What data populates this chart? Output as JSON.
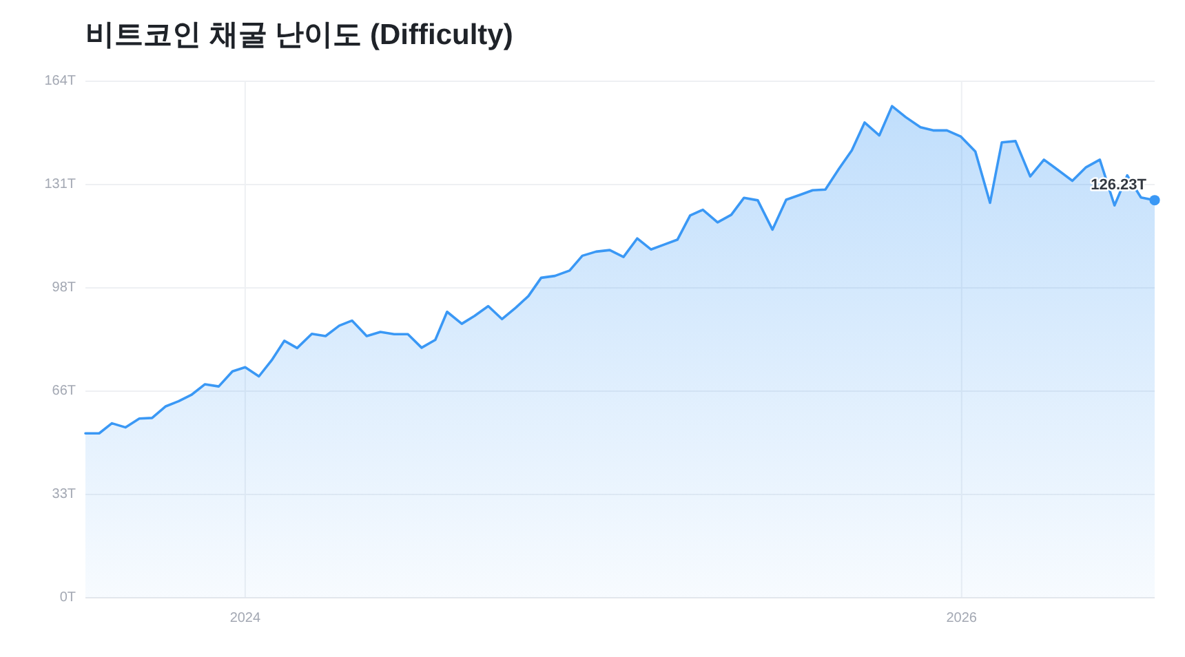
{
  "chart_data": {
    "type": "area",
    "title": "비트코인 채굴 난이도 (Difficulty)",
    "x": [
      "2023-07-22",
      "2023-08-05",
      "2023-08-18",
      "2023-09-01",
      "2023-09-15",
      "2023-09-28",
      "2023-10-12",
      "2023-10-25",
      "2023-11-07",
      "2023-11-21",
      "2023-12-05",
      "2023-12-19",
      "2024-01-01",
      "2024-01-15",
      "2024-01-28",
      "2024-02-10",
      "2024-02-23",
      "2024-03-09",
      "2024-03-23",
      "2024-04-06",
      "2024-04-19",
      "2024-05-04",
      "2024-05-18",
      "2024-06-01",
      "2024-06-15",
      "2024-06-29",
      "2024-07-13",
      "2024-07-25",
      "2024-08-09",
      "2024-08-22",
      "2024-09-05",
      "2024-09-19",
      "2024-10-03",
      "2024-10-16",
      "2024-10-29",
      "2024-11-12",
      "2024-11-27",
      "2024-12-10",
      "2024-12-24",
      "2025-01-07",
      "2025-01-21",
      "2025-02-04",
      "2025-02-18",
      "2025-03-04",
      "2025-03-17",
      "2025-03-30",
      "2025-04-12",
      "2025-04-27",
      "2025-05-11",
      "2025-05-24",
      "2025-06-07",
      "2025-06-22",
      "2025-07-06",
      "2025-07-19",
      "2025-08-02",
      "2025-08-15",
      "2025-08-29",
      "2025-09-11",
      "2025-09-24",
      "2025-10-09",
      "2025-10-22",
      "2025-11-05",
      "2025-11-20",
      "2025-12-03",
      "2025-12-17",
      "2025-12-31",
      "2026-01-15",
      "2026-01-30",
      "2026-02-11",
      "2026-02-25",
      "2026-03-12",
      "2026-03-26",
      "2026-04-09",
      "2026-04-24",
      "2026-05-08",
      "2026-05-22",
      "2026-06-06",
      "2026-06-19",
      "2026-07-03",
      "2026-07-17"
    ],
    "series": [
      {
        "color": "#3a98f5",
        "values": [
          52.2,
          52.2,
          55.4,
          54.1,
          56.9,
          57.1,
          60.8,
          62.4,
          64.4,
          67.8,
          67.1,
          71.9,
          73.2,
          70.3,
          75.4,
          81.6,
          79.3,
          83.8,
          83.1,
          86.4,
          88.0,
          83.1,
          84.4,
          83.7,
          83.7,
          79.4,
          81.9,
          90.8,
          87.0,
          89.5,
          92.6,
          88.5,
          92.1,
          95.8,
          101.6,
          102.2,
          103.9,
          108.6,
          109.9,
          110.4,
          108.2,
          114.1,
          110.6,
          112.2,
          113.7,
          121.4,
          123.2,
          119.2,
          121.6,
          127.0,
          126.2,
          116.9,
          126.4,
          127.8,
          129.4,
          129.6,
          136.3,
          142.1,
          150.9,
          146.8,
          156.1,
          152.6,
          149.4,
          148.4,
          148.4,
          146.5,
          141.7,
          125.4,
          144.6,
          145.0,
          133.8,
          139.1,
          135.9,
          132.4,
          136.7,
          139.1,
          124.6,
          134.1,
          127.1,
          126.23
        ]
      }
    ],
    "xlim": [
      "2023-07-22",
      "2026-07-17"
    ],
    "xticks": [
      {
        "value": "2024-01-01",
        "label": "2024"
      },
      {
        "value": "2026-01-01",
        "label": "2026"
      }
    ],
    "ylim": [
      0,
      164
    ],
    "yticks": [
      {
        "value": 0,
        "label": "0T"
      },
      {
        "value": 32.8,
        "label": "33T"
      },
      {
        "value": 65.6,
        "label": "66T"
      },
      {
        "value": 98.4,
        "label": "98T"
      },
      {
        "value": 131.2,
        "label": "131T"
      },
      {
        "value": 164,
        "label": "164T"
      }
    ],
    "grid": true,
    "annotations": [
      {
        "text": "126.23T",
        "x": "2026-07-17",
        "y": 126.23
      }
    ]
  }
}
